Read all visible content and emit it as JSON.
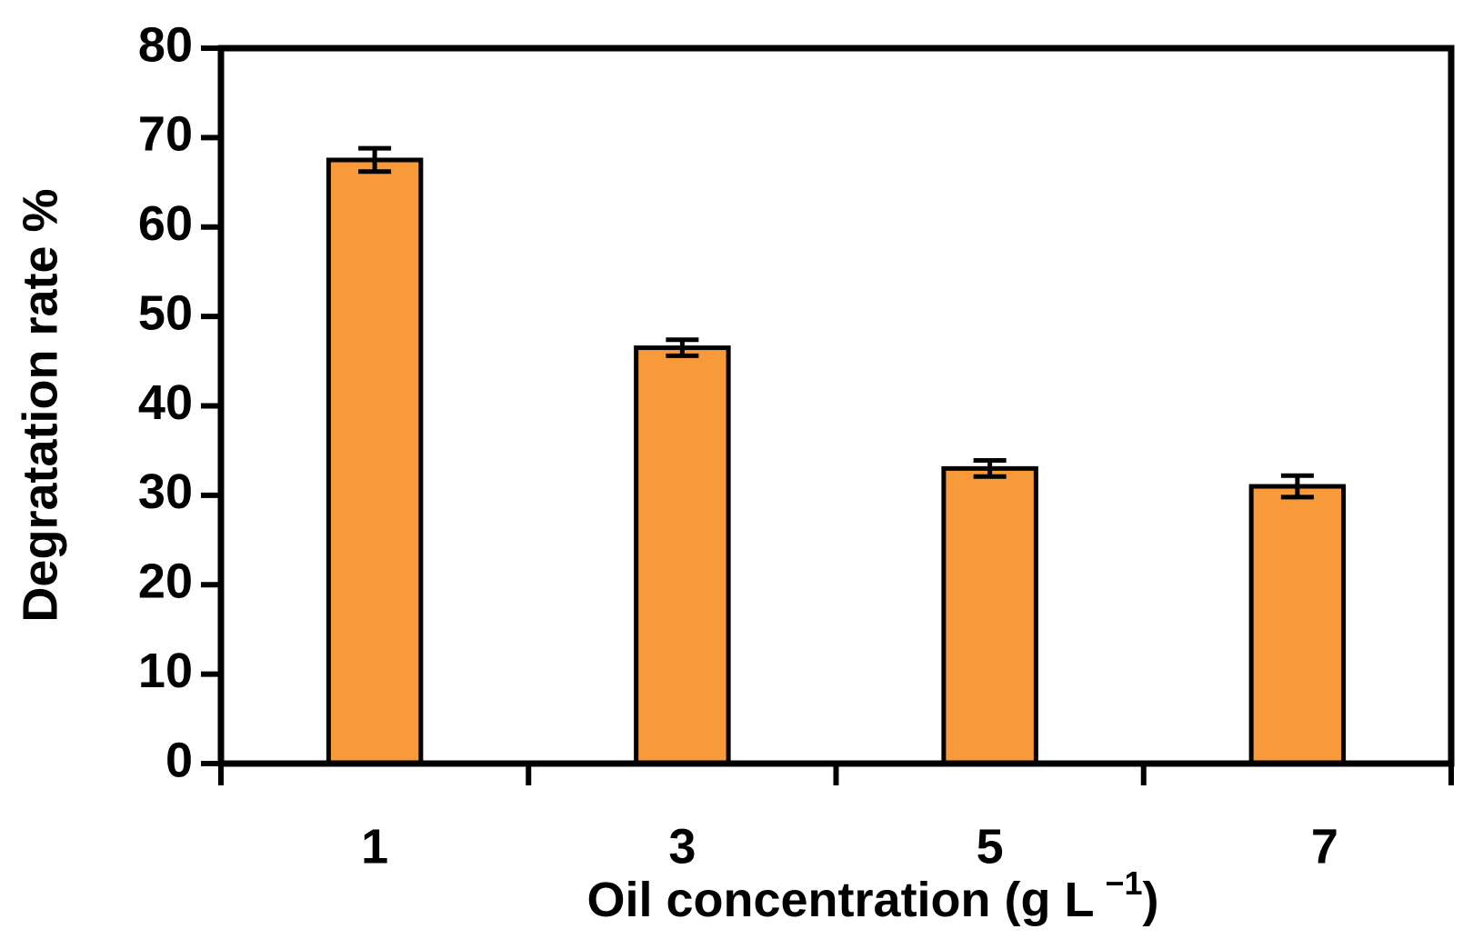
{
  "chart_data": {
    "type": "bar",
    "ylabel": "Degratation rate %",
    "xlabel": "Oil concentration (g L",
    "xlabel_superscript": "−1",
    "xlabel_end": ")",
    "categories": [
      "1",
      "3",
      "5",
      "7"
    ],
    "values": [
      67.5,
      46.5,
      33,
      31
    ],
    "errors": [
      1.3,
      0.9,
      0.9,
      1.2
    ],
    "color": "#f8993a",
    "ylim": [
      0,
      80
    ],
    "yticks": [
      0,
      10,
      20,
      30,
      40,
      50,
      60,
      70,
      80
    ]
  }
}
